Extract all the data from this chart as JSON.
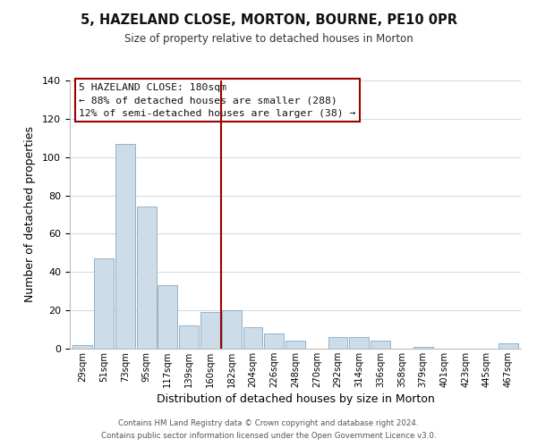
{
  "title": "5, HAZELAND CLOSE, MORTON, BOURNE, PE10 0PR",
  "subtitle": "Size of property relative to detached houses in Morton",
  "xlabel": "Distribution of detached houses by size in Morton",
  "ylabel": "Number of detached properties",
  "bar_color": "#ccdce8",
  "bar_edgecolor": "#88aac0",
  "categories": [
    "29sqm",
    "51sqm",
    "73sqm",
    "95sqm",
    "117sqm",
    "139sqm",
    "160sqm",
    "182sqm",
    "204sqm",
    "226sqm",
    "248sqm",
    "270sqm",
    "292sqm",
    "314sqm",
    "336sqm",
    "358sqm",
    "379sqm",
    "401sqm",
    "423sqm",
    "445sqm",
    "467sqm"
  ],
  "values": [
    2,
    47,
    107,
    74,
    33,
    12,
    19,
    20,
    11,
    8,
    4,
    0,
    6,
    6,
    4,
    0,
    1,
    0,
    0,
    0,
    3
  ],
  "vline_color": "#990000",
  "ylim": [
    0,
    140
  ],
  "yticks": [
    0,
    20,
    40,
    60,
    80,
    100,
    120,
    140
  ],
  "annotation_title": "5 HAZELAND CLOSE: 180sqm",
  "annotation_line1": "← 88% of detached houses are smaller (288)",
  "annotation_line2": "12% of semi-detached houses are larger (38) →",
  "footer1": "Contains HM Land Registry data © Crown copyright and database right 2024.",
  "footer2": "Contains public sector information licensed under the Open Government Licence v3.0.",
  "background_color": "#ffffff",
  "grid_color": "#d0dce8"
}
